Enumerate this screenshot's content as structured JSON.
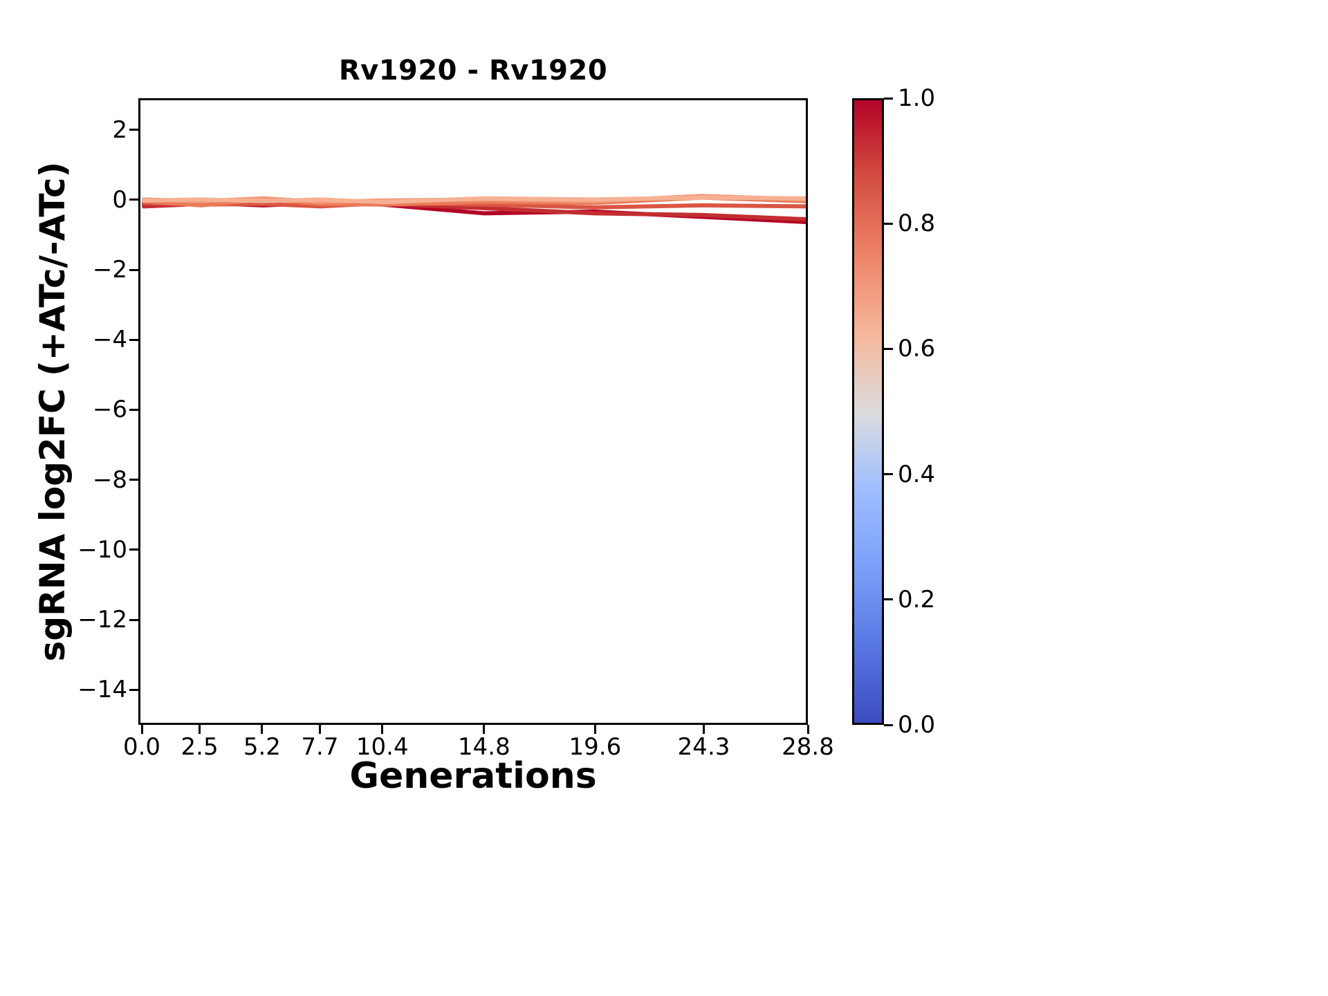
{
  "figure": {
    "background": "#ffffff",
    "axis_color": "#000000"
  },
  "chart_data": {
    "type": "line",
    "title": "Rv1920 - Rv1920",
    "xlabel": "Generations",
    "ylabel": "sgRNA log2FC (+ATc/-ATc)",
    "grid": false,
    "legend": "none (colorbar encodes series color value)",
    "x": [
      0.0,
      2.5,
      5.2,
      7.7,
      10.4,
      14.8,
      19.6,
      24.3,
      28.8
    ],
    "xtick_labels": [
      "0.0",
      "2.5",
      "5.2",
      "7.7",
      "10.4",
      "14.8",
      "19.6",
      "24.3",
      "28.8"
    ],
    "yticks": [
      2,
      0,
      -2,
      -4,
      -6,
      -8,
      -10,
      -12,
      -14
    ],
    "ytick_labels": [
      "2",
      "0",
      "−2",
      "−4",
      "−6",
      "−8",
      "−10",
      "−12",
      "−14"
    ],
    "xlim": [
      -0.15,
      28.8
    ],
    "ylim": [
      -15.0,
      2.9
    ],
    "series": [
      {
        "colormap_value": 1.0,
        "color": "#b40426",
        "values": [
          -0.1,
          -0.05,
          -0.12,
          -0.05,
          -0.1,
          -0.35,
          -0.3,
          -0.45,
          -0.6
        ]
      },
      {
        "colormap_value": 0.95,
        "color": "#c32e31",
        "values": [
          -0.15,
          -0.08,
          -0.05,
          -0.12,
          -0.08,
          -0.2,
          -0.35,
          -0.4,
          -0.52
        ]
      },
      {
        "colormap_value": 0.87,
        "color": "#da5644",
        "values": [
          -0.05,
          -0.1,
          -0.08,
          -0.15,
          -0.05,
          -0.1,
          -0.18,
          -0.12,
          -0.15
        ]
      },
      {
        "colormap_value": 0.78,
        "color": "#ea7b58",
        "values": [
          0.0,
          -0.12,
          0.05,
          -0.08,
          -0.1,
          -0.02,
          -0.05,
          0.1,
          0.0
        ]
      },
      {
        "colormap_value": 0.7,
        "color": "#f49a7b",
        "values": [
          0.05,
          0.0,
          0.08,
          -0.02,
          0.02,
          0.05,
          0.0,
          0.15,
          0.05
        ]
      },
      {
        "colormap_value": 0.63,
        "color": "#f6b194",
        "values": [
          0.02,
          0.05,
          0.0,
          0.05,
          -0.03,
          0.08,
          0.05,
          0.1,
          0.08
        ]
      }
    ],
    "colorbar": {
      "cmap": "coolwarm",
      "min": 0.0,
      "max": 1.0,
      "tick_labels": [
        "1.0",
        "0.8",
        "0.6",
        "0.4",
        "0.2",
        "0.0"
      ],
      "gradient": [
        {
          "pos": 0.0,
          "color": "#3b4cc0"
        },
        {
          "pos": 0.125,
          "color": "#5977e3"
        },
        {
          "pos": 0.25,
          "color": "#7b9ff9"
        },
        {
          "pos": 0.375,
          "color": "#9ebeff"
        },
        {
          "pos": 0.5,
          "color": "#dcdcdc"
        },
        {
          "pos": 0.625,
          "color": "#f6b69b"
        },
        {
          "pos": 0.75,
          "color": "#ee8468"
        },
        {
          "pos": 0.875,
          "color": "#d44e41"
        },
        {
          "pos": 1.0,
          "color": "#b40426"
        }
      ]
    }
  }
}
